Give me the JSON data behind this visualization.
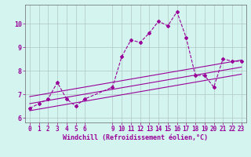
{
  "xlabel": "Windchill (Refroidissement éolien,°C)",
  "ylabel": "",
  "bg_color": "#d4f5ef",
  "line_color": "#990099",
  "grid_color": "#b0c8c4",
  "hours": [
    0,
    1,
    2,
    3,
    4,
    5,
    6,
    9,
    10,
    11,
    12,
    13,
    14,
    15,
    16,
    17,
    18,
    19,
    20,
    21,
    22,
    23
  ],
  "windchill": [
    6.4,
    6.6,
    6.8,
    7.5,
    6.8,
    6.5,
    6.8,
    7.3,
    8.6,
    9.3,
    9.2,
    9.6,
    10.1,
    9.9,
    10.5,
    9.4,
    7.8,
    7.8,
    7.3,
    8.5,
    8.4,
    8.4
  ],
  "trend1_x": [
    0,
    23
  ],
  "trend1_y": [
    6.6,
    8.15
  ],
  "trend2_x": [
    0,
    23
  ],
  "trend2_y": [
    6.9,
    8.45
  ],
  "trend3_x": [
    0,
    23
  ],
  "trend3_y": [
    6.3,
    7.85
  ],
  "ylim": [
    5.8,
    10.8
  ],
  "xlim": [
    -0.5,
    23.5
  ],
  "xticks": [
    0,
    1,
    2,
    3,
    4,
    5,
    6,
    9,
    10,
    11,
    12,
    13,
    14,
    15,
    16,
    17,
    18,
    19,
    20,
    21,
    22,
    23
  ],
  "yticks": [
    6,
    7,
    8,
    9,
    10
  ],
  "tick_fontsize": 5.5,
  "xlabel_fontsize": 6.0
}
